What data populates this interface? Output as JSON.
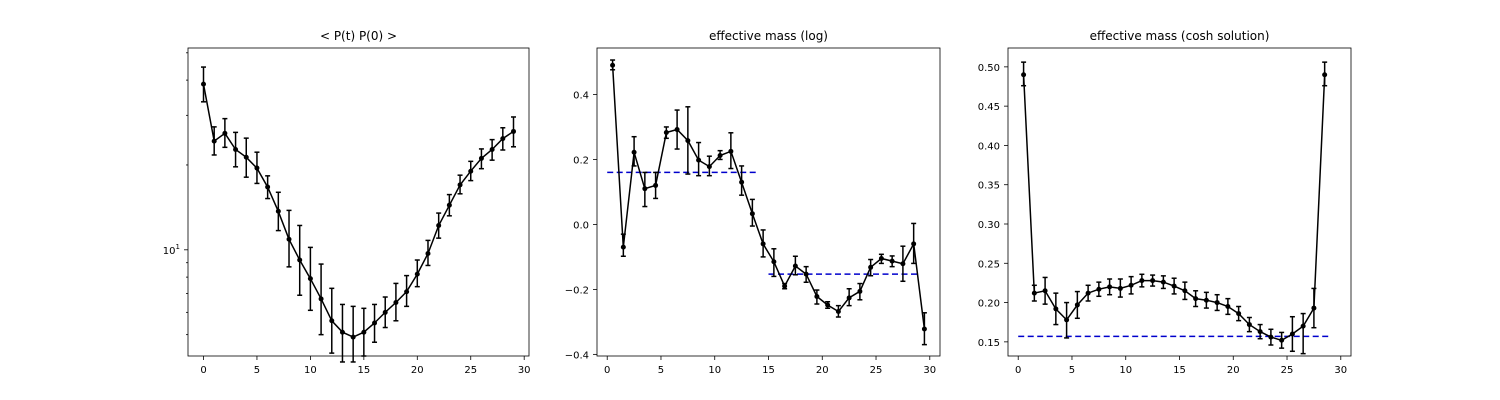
{
  "chart_data": [
    {
      "type": "line",
      "title": "< P(t)  P(0) >",
      "xlabel": "",
      "ylabel": "",
      "yscale": "log",
      "xlim": [
        -1.45,
        30.45
      ],
      "ylim": [
        4.2,
        52
      ],
      "xticks": [
        0,
        5,
        10,
        15,
        20,
        25,
        30
      ],
      "yticks": [
        {
          "value": 10,
          "label": "10",
          "exp": "1"
        }
      ],
      "series": [
        {
          "color": "#000000",
          "marker": "point",
          "x": [
            0,
            1,
            2,
            3,
            4,
            5,
            6,
            7,
            8,
            9,
            10,
            11,
            12,
            13,
            14,
            15,
            16,
            17,
            18,
            19,
            20,
            21,
            22,
            23,
            24,
            25,
            26,
            27,
            28,
            29
          ],
          "y": [
            38.7,
            24.3,
            25.9,
            22.7,
            21.3,
            19.5,
            16.7,
            13.7,
            10.9,
            9.2,
            7.9,
            6.7,
            5.6,
            5.1,
            4.9,
            5.1,
            5.5,
            6.0,
            6.5,
            7.1,
            8.2,
            9.7,
            12.2,
            14.4,
            17.0,
            19.0,
            21.1,
            22.7,
            24.8,
            26.3
          ],
          "err": [
            [
              33.5,
              44.5
            ],
            [
              21.7,
              27.3
            ],
            [
              23.1,
              29.2
            ],
            [
              19.7,
              26.1
            ],
            [
              18.1,
              24.9
            ],
            [
              17.2,
              22.2
            ],
            [
              15.2,
              18.3
            ],
            [
              11.7,
              16.0
            ],
            [
              8.7,
              13.8
            ],
            [
              6.9,
              12.2
            ],
            [
              6.1,
              10.2
            ],
            [
              5.0,
              8.9
            ],
            [
              4.3,
              7.3
            ],
            [
              4.0,
              6.4
            ],
            [
              4.0,
              6.3
            ],
            [
              4.2,
              6.2
            ],
            [
              4.7,
              6.4
            ],
            [
              5.3,
              6.8
            ],
            [
              5.6,
              7.6
            ],
            [
              6.3,
              8.1
            ],
            [
              7.4,
              9.2
            ],
            [
              8.8,
              10.8
            ],
            [
              11.0,
              13.5
            ],
            [
              13.2,
              15.7
            ],
            [
              15.8,
              18.4
            ],
            [
              17.6,
              20.6
            ],
            [
              19.4,
              22.8
            ],
            [
              20.8,
              24.6
            ],
            [
              22.6,
              27.1
            ],
            [
              23.2,
              29.6
            ]
          ]
        }
      ],
      "grid": false
    },
    {
      "type": "line",
      "title": "effective mass (log)",
      "xlabel": "",
      "ylabel": "",
      "xlim": [
        -0.95,
        30.95
      ],
      "ylim": [
        -0.405,
        0.543
      ],
      "xticks": [
        0,
        5,
        10,
        15,
        20,
        25,
        30
      ],
      "yticks": [
        -0.4,
        -0.2,
        0.0,
        0.2,
        0.4
      ],
      "ytick_labels": [
        "−0.4",
        "−0.2",
        "0.0",
        "0.2",
        "0.4"
      ],
      "series": [
        {
          "color": "#000000",
          "marker": "point",
          "x": [
            0.5,
            1.5,
            2.5,
            3.5,
            4.5,
            5.5,
            6.5,
            7.5,
            8.5,
            9.5,
            10.5,
            11.5,
            12.5,
            13.5,
            14.5,
            15.5,
            16.5,
            17.5,
            18.5,
            19.5,
            20.5,
            21.5,
            22.5,
            23.5,
            24.5,
            25.5,
            26.5,
            27.5,
            28.5,
            29.5
          ],
          "y": [
            0.49,
            -0.07,
            0.222,
            0.11,
            0.12,
            0.283,
            0.292,
            0.258,
            0.198,
            0.178,
            0.212,
            0.225,
            0.13,
            0.033,
            -0.06,
            -0.115,
            -0.19,
            -0.128,
            -0.153,
            -0.222,
            -0.248,
            -0.268,
            -0.226,
            -0.206,
            -0.132,
            -0.105,
            -0.113,
            -0.121,
            -0.06,
            -0.322
          ],
          "err": [
            [
              0.476,
              0.506
            ],
            [
              -0.098,
              -0.03
            ],
            [
              0.18,
              0.27
            ],
            [
              0.055,
              0.16
            ],
            [
              0.08,
              0.16
            ],
            [
              0.265,
              0.3
            ],
            [
              0.232,
              0.352
            ],
            [
              0.155,
              0.362
            ],
            [
              0.15,
              0.252
            ],
            [
              0.15,
              0.21
            ],
            [
              0.2,
              0.227
            ],
            [
              0.172,
              0.282
            ],
            [
              0.09,
              0.18
            ],
            [
              -0.005,
              0.077
            ],
            [
              -0.1,
              -0.017
            ],
            [
              -0.16,
              -0.075
            ],
            [
              -0.198,
              -0.182
            ],
            [
              -0.155,
              -0.098
            ],
            [
              -0.178,
              -0.13
            ],
            [
              -0.245,
              -0.202
            ],
            [
              -0.258,
              -0.238
            ],
            [
              -0.285,
              -0.25
            ],
            [
              -0.25,
              -0.198
            ],
            [
              -0.232,
              -0.182
            ],
            [
              -0.158,
              -0.108
            ],
            [
              -0.12,
              -0.092
            ],
            [
              -0.13,
              -0.097
            ],
            [
              -0.175,
              -0.067
            ],
            [
              -0.12,
              0.003
            ],
            [
              -0.37,
              -0.272
            ]
          ]
        }
      ],
      "fit_lines": [
        {
          "label": "",
          "color": "#0000cc",
          "style": "dashed",
          "x": [
            0,
            14
          ],
          "y": 0.16
        },
        {
          "label": "",
          "color": "#0000cc",
          "style": "dashed",
          "x": [
            15,
            29
          ],
          "y": -0.153
        }
      ],
      "grid": false
    },
    {
      "type": "line",
      "title": "effective mass (cosh solution)",
      "xlabel": "",
      "ylabel": "",
      "xlim": [
        -0.95,
        30.95
      ],
      "ylim": [
        0.132,
        0.524
      ],
      "xticks": [
        0,
        5,
        10,
        15,
        20,
        25,
        30
      ],
      "yticks": [
        0.15,
        0.2,
        0.25,
        0.3,
        0.35,
        0.4,
        0.45,
        0.5
      ],
      "ytick_labels": [
        "0.15",
        "0.20",
        "0.25",
        "0.30",
        "0.35",
        "0.40",
        "0.45",
        "0.50"
      ],
      "series": [
        {
          "color": "#000000",
          "marker": "point",
          "x": [
            0.5,
            1.5,
            2.5,
            3.5,
            4.5,
            5.5,
            6.5,
            7.5,
            8.5,
            9.5,
            10.5,
            11.5,
            12.5,
            13.5,
            14.5,
            15.5,
            16.5,
            17.5,
            18.5,
            19.5,
            20.5,
            21.5,
            22.5,
            23.5,
            24.5,
            25.5,
            26.5,
            27.5,
            28.5
          ],
          "y": [
            0.49,
            0.212,
            0.215,
            0.192,
            0.178,
            0.197,
            0.212,
            0.217,
            0.22,
            0.218,
            0.222,
            0.228,
            0.228,
            0.226,
            0.221,
            0.215,
            0.205,
            0.203,
            0.2,
            0.195,
            0.186,
            0.172,
            0.163,
            0.156,
            0.152,
            0.16,
            0.17,
            0.193,
            0.49
          ],
          "err": [
            [
              0.476,
              0.506
            ],
            [
              0.202,
              0.222
            ],
            [
              0.198,
              0.232
            ],
            [
              0.172,
              0.212
            ],
            [
              0.155,
              0.2
            ],
            [
              0.18,
              0.214
            ],
            [
              0.202,
              0.222
            ],
            [
              0.208,
              0.226
            ],
            [
              0.21,
              0.23
            ],
            [
              0.207,
              0.23
            ],
            [
              0.211,
              0.233
            ],
            [
              0.22,
              0.236
            ],
            [
              0.221,
              0.235
            ],
            [
              0.218,
              0.234
            ],
            [
              0.211,
              0.231
            ],
            [
              0.204,
              0.226
            ],
            [
              0.195,
              0.215
            ],
            [
              0.193,
              0.213
            ],
            [
              0.19,
              0.21
            ],
            [
              0.185,
              0.205
            ],
            [
              0.177,
              0.195
            ],
            [
              0.163,
              0.181
            ],
            [
              0.154,
              0.172
            ],
            [
              0.146,
              0.166
            ],
            [
              0.142,
              0.162
            ],
            [
              0.138,
              0.182
            ],
            [
              0.135,
              0.186
            ],
            [
              0.168,
              0.218
            ],
            [
              0.476,
              0.506
            ]
          ]
        }
      ],
      "fit_lines": [
        {
          "label": "",
          "color": "#0000cc",
          "style": "dashed",
          "x": [
            0,
            29
          ],
          "y": 0.157
        }
      ],
      "grid": false
    }
  ]
}
